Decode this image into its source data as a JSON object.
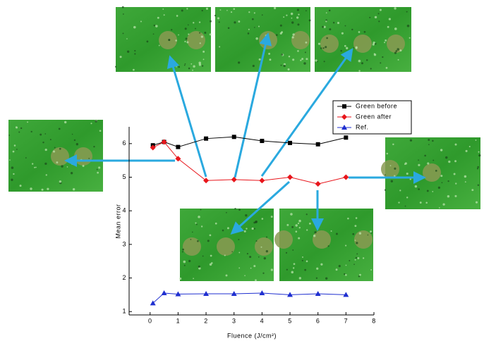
{
  "chart_data": {
    "type": "line",
    "x_label": "Fluence (J/cm²)",
    "y_label": "Mean error",
    "xlim": [
      -0.75,
      8
    ],
    "xticks": [
      0,
      1,
      2,
      3,
      4,
      5,
      6,
      7,
      8
    ],
    "ylim": [
      0.9,
      6.5
    ],
    "yticks": [
      1,
      2,
      3,
      4,
      5,
      6
    ],
    "legend": "top-right",
    "series": [
      {
        "name": "Green before",
        "color": "#000000",
        "marker": "square",
        "x": [
          0.1,
          0.5,
          1,
          2,
          3,
          4,
          5,
          6,
          7
        ],
        "values": [
          5.95,
          6.05,
          5.9,
          6.15,
          6.2,
          6.08,
          6.02,
          5.98,
          6.18
        ]
      },
      {
        "name": "Green after",
        "color": "#e8151b",
        "marker": "diamond",
        "x": [
          0.1,
          0.5,
          1,
          2,
          3,
          4,
          5,
          6,
          7
        ],
        "values": [
          5.88,
          6.05,
          5.55,
          4.9,
          4.93,
          4.9,
          5.0,
          4.8,
          5.0
        ]
      },
      {
        "name": "Ref.",
        "color": "#1f2fd0",
        "marker": "triangle",
        "x": [
          0.1,
          0.5,
          1,
          2,
          3,
          4,
          5,
          6,
          7
        ],
        "values": [
          1.25,
          1.55,
          1.52,
          1.53,
          1.53,
          1.55,
          1.5,
          1.53,
          1.5
        ]
      }
    ]
  }
}
